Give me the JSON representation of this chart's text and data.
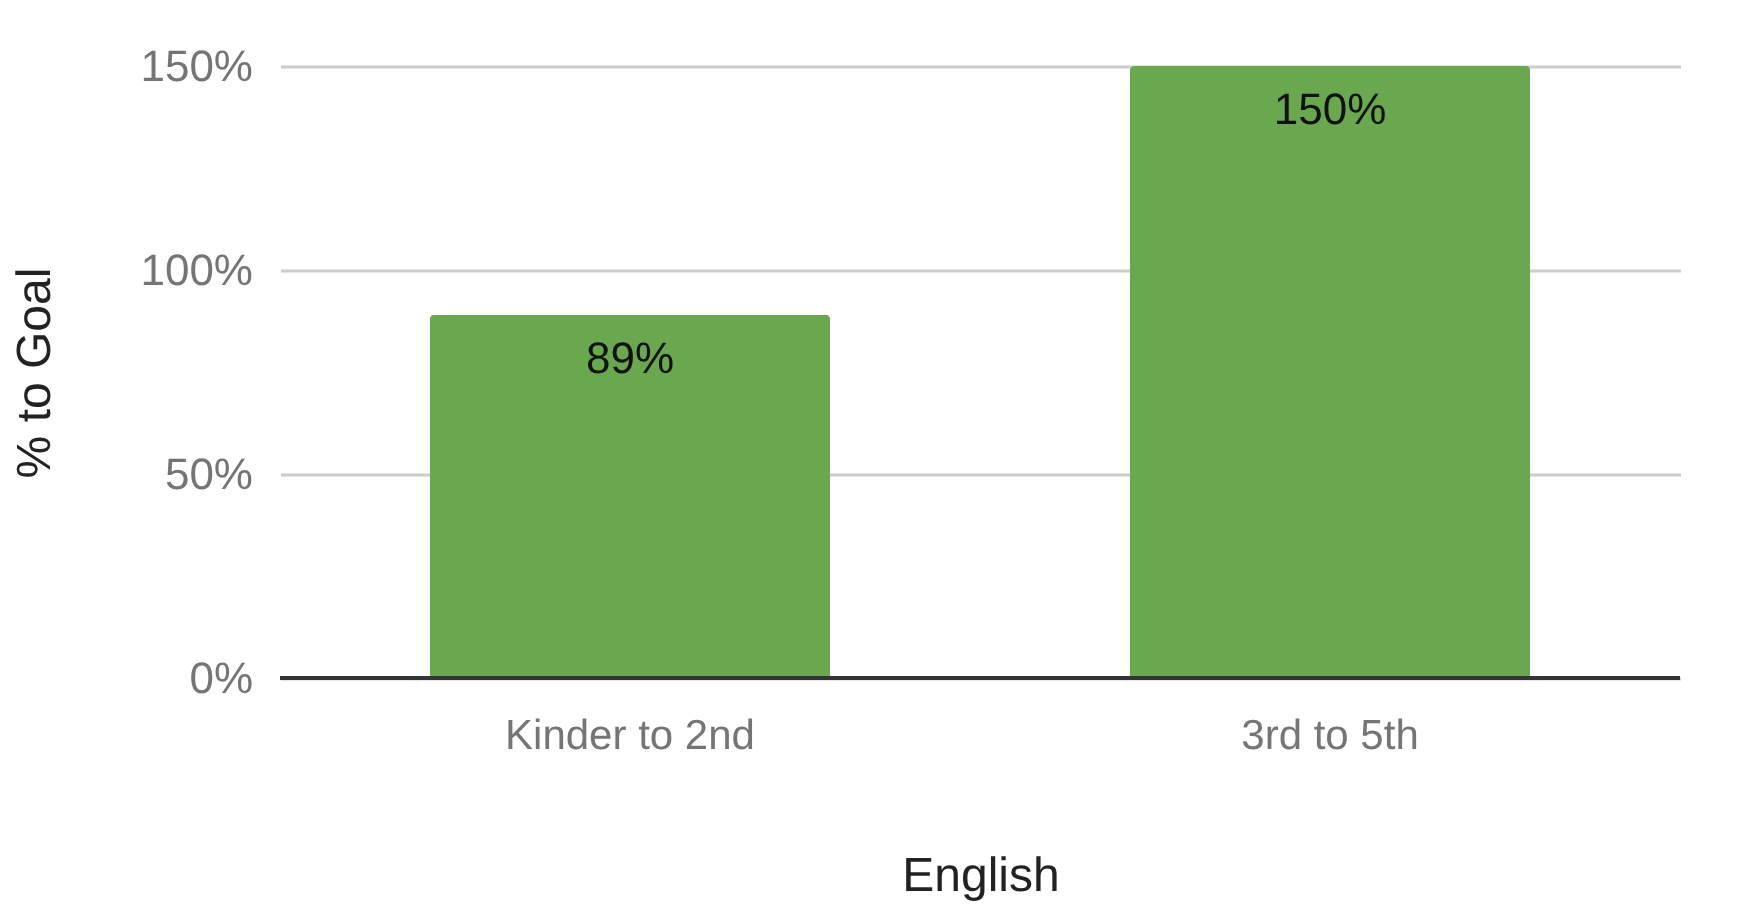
{
  "chart_data": {
    "type": "bar",
    "xlabel": "English",
    "ylabel": "% to Goal",
    "categories": [
      "Kinder to 2nd",
      "3rd to 5th"
    ],
    "values": [
      89,
      150
    ],
    "color": "#6aa84f",
    "value_labels": [
      "89%",
      "150%"
    ],
    "ylim": [
      0,
      150
    ],
    "yticks": [
      {
        "value": 0,
        "label": "0%"
      },
      {
        "value": 50,
        "label": "50%"
      },
      {
        "value": 100,
        "label": "100%"
      },
      {
        "value": 150,
        "label": "150%"
      }
    ],
    "grid": "y"
  }
}
